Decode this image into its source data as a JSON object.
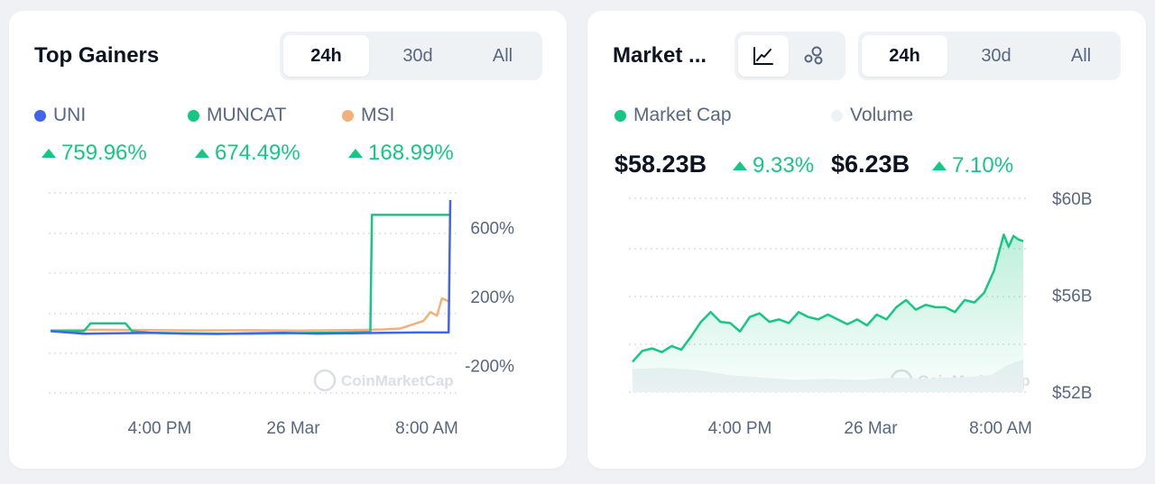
{
  "left_card": {
    "title": "Top Gainers",
    "tabs": [
      {
        "label": "24h",
        "active": true
      },
      {
        "label": "30d",
        "active": false
      },
      {
        "label": "All",
        "active": false
      }
    ],
    "legend": [
      {
        "name": "UNI",
        "color": "#4263eb",
        "change": "759.96%"
      },
      {
        "name": "MUNCAT",
        "color": "#16c784",
        "change": "674.49%"
      },
      {
        "name": "MSI",
        "color": "#f0b27a",
        "change": "168.99%"
      }
    ],
    "watermark": "CoinMarketCap"
  },
  "right_card": {
    "title": "Market ...",
    "chart_type_icons": [
      "line-chart-icon",
      "bubble-chart-icon"
    ],
    "tabs": [
      {
        "label": "24h",
        "active": true
      },
      {
        "label": "30d",
        "active": false
      },
      {
        "label": "All",
        "active": false
      }
    ],
    "legend": [
      {
        "name": "Market Cap",
        "color": "#16c784"
      },
      {
        "name": "Volume",
        "color": "#eff2f5"
      }
    ],
    "market_cap_value": "$58.23B",
    "market_cap_change": "9.33%",
    "volume_value": "$6.23B",
    "volume_change": "7.10%",
    "watermark": "CoinMarketCap"
  },
  "chart_data": [
    {
      "type": "line",
      "title": "Top Gainers",
      "x_tick_labels": [
        "4:00 PM",
        "26 Mar",
        "8:00 AM"
      ],
      "y_tick_labels": [
        "600%",
        "200%",
        "-200%"
      ],
      "y_ticks": [
        600,
        200,
        -200
      ],
      "ylim": [
        -390,
        760
      ],
      "grid": true,
      "x_range": [
        0,
        24
      ],
      "series": [
        {
          "name": "UNI",
          "color": "#4263eb",
          "x": [
            0,
            2,
            4,
            6,
            8,
            10,
            12,
            14,
            16,
            18,
            20,
            22,
            23.9,
            24
          ],
          "y": [
            0,
            -15,
            -12,
            -10,
            -14,
            -16,
            -12,
            -10,
            -14,
            -12,
            -10,
            -8,
            -8,
            759.96
          ]
        },
        {
          "name": "MUNCAT",
          "color": "#16c784",
          "x": [
            0,
            2,
            2.4,
            4.5,
            4.9,
            6,
            8,
            10,
            12,
            14,
            16,
            18,
            19.2,
            19.3,
            24
          ],
          "y": [
            0,
            0,
            45,
            45,
            0,
            -10,
            -12,
            -14,
            -15,
            -12,
            -10,
            -8,
            -5,
            674.49,
            674.49
          ]
        },
        {
          "name": "MSI",
          "color": "#f0b27a",
          "x": [
            0,
            3,
            6,
            9,
            12,
            15,
            18,
            20,
            21,
            21.8,
            22.4,
            22.8,
            23.2,
            23.5,
            24
          ],
          "y": [
            5,
            8,
            6,
            4,
            5,
            3,
            6,
            10,
            15,
            40,
            60,
            110,
            90,
            190,
            168.99
          ]
        }
      ]
    },
    {
      "type": "area",
      "title": "Market ...",
      "x_tick_labels": [
        "4:00 PM",
        "26 Mar",
        "8:00 AM"
      ],
      "y_tick_labels": [
        "$60B",
        "$56B",
        "$52B"
      ],
      "y_ticks": [
        60,
        56,
        52
      ],
      "ylim": [
        52,
        60
      ],
      "grid": true,
      "x_range": [
        0,
        24
      ],
      "series": [
        {
          "name": "Market Cap",
          "color": "#16c784",
          "x": [
            0,
            0.6,
            1.2,
            1.8,
            2.4,
            3,
            3.6,
            4.2,
            4.8,
            5.4,
            6,
            6.6,
            7.2,
            7.8,
            8.4,
            9,
            9.6,
            10.2,
            10.8,
            11.4,
            12,
            12.6,
            13.2,
            13.8,
            14.4,
            15,
            15.6,
            16.2,
            16.8,
            17.4,
            18,
            18.6,
            19.2,
            19.8,
            20.4,
            21,
            21.6,
            22.2,
            22.8,
            23.1,
            23.4,
            23.7,
            24
          ],
          "y": [
            53.25,
            53.7,
            53.8,
            53.65,
            53.9,
            53.75,
            54.3,
            54.9,
            55.3,
            54.9,
            54.85,
            54.5,
            55.1,
            55.25,
            54.9,
            55.0,
            54.85,
            55.3,
            55.1,
            55.0,
            55.2,
            55.0,
            54.8,
            55.0,
            54.75,
            55.2,
            55.0,
            55.5,
            55.8,
            55.4,
            55.6,
            55.5,
            55.5,
            55.3,
            55.8,
            55.7,
            56.1,
            57.0,
            58.5,
            58.0,
            58.45,
            58.3,
            58.23
          ]
        },
        {
          "name": "Volume",
          "color": "#eff2f5",
          "x": [
            0,
            2,
            4,
            6,
            8,
            10,
            12,
            14,
            16,
            18,
            20,
            22,
            23,
            24
          ],
          "y": [
            52.95,
            53.0,
            52.9,
            52.7,
            52.6,
            52.5,
            52.55,
            52.5,
            52.6,
            52.55,
            52.6,
            52.7,
            53.1,
            53.35
          ]
        }
      ]
    }
  ]
}
